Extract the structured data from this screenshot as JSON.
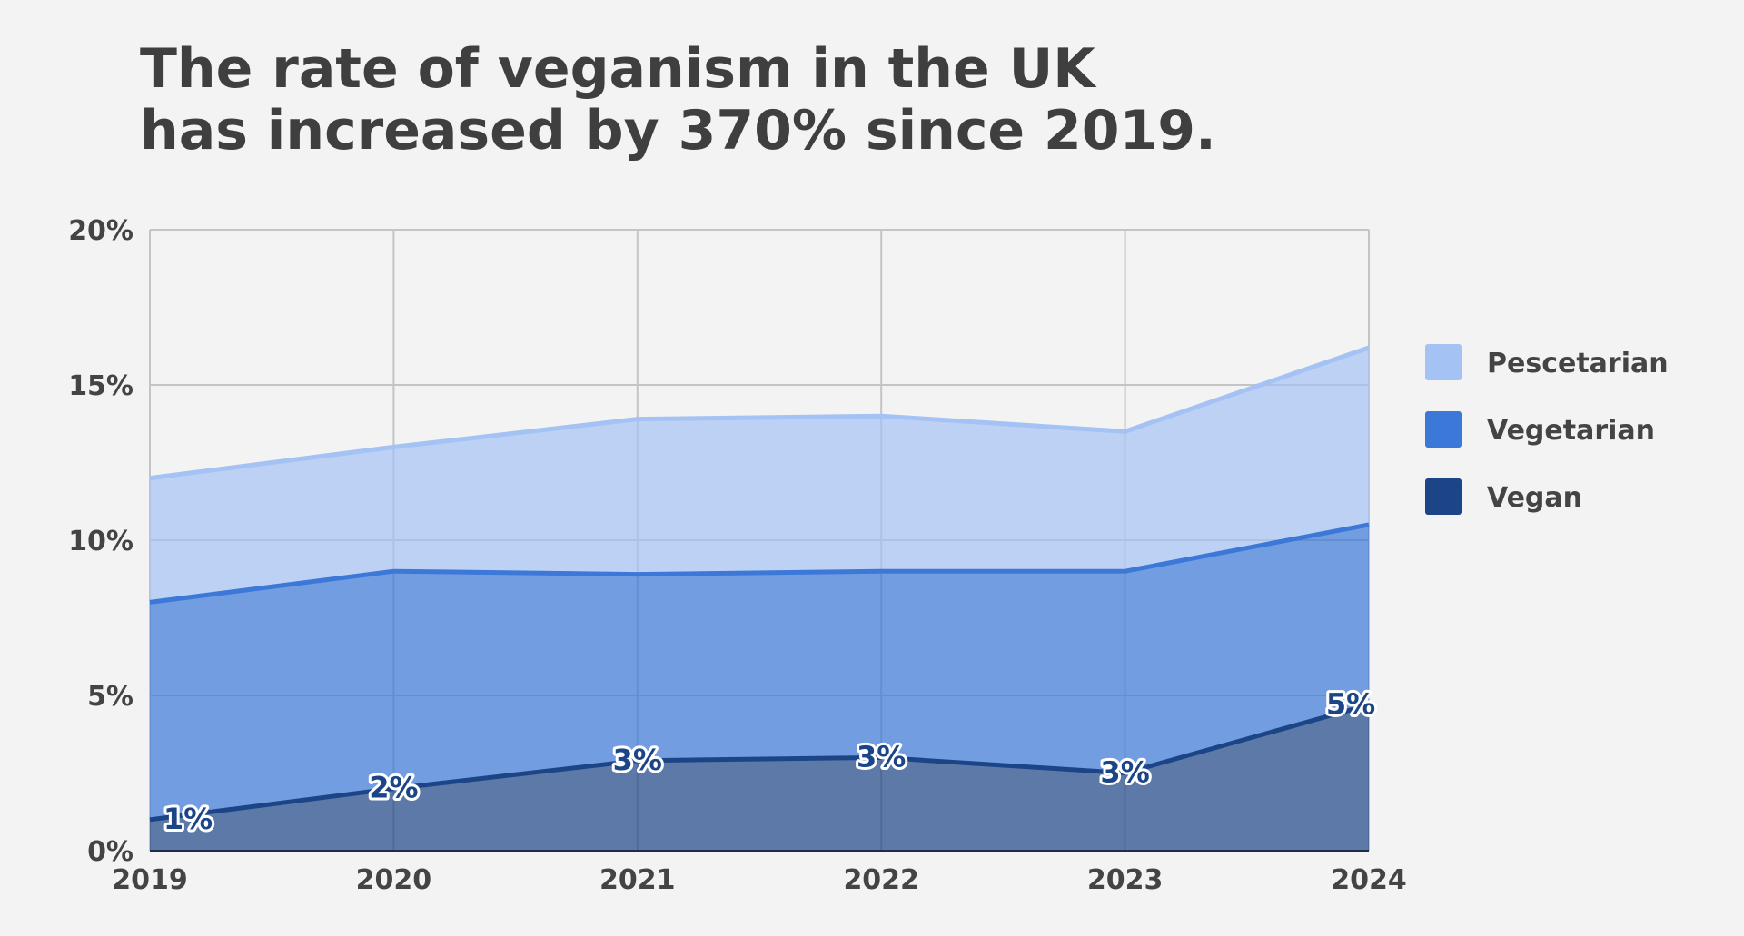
{
  "chart_data": {
    "type": "stacked_area",
    "title": [
      "The rate of veganism in the UK",
      "has increased by 370% since 2019."
    ],
    "x": [
      2019,
      2020,
      2021,
      2022,
      2023,
      2024
    ],
    "xlim": [
      2019,
      2024
    ],
    "xticks": [
      2019,
      2020,
      2021,
      2022,
      2023,
      2024
    ],
    "ylim": [
      0,
      20
    ],
    "yticks": [
      {
        "value": 0,
        "label": "0%"
      },
      {
        "value": 5,
        "label": "5%"
      },
      {
        "value": 10,
        "label": "10%"
      },
      {
        "value": 15,
        "label": "15%"
      },
      {
        "value": 20,
        "label": "20%"
      }
    ],
    "grid": true,
    "legend": "right",
    "series": [
      {
        "name": "Vegan",
        "color": "#1c4587",
        "values": [
          1.0,
          2.0,
          2.9,
          3.0,
          2.5,
          4.7
        ],
        "value_labels": [
          "1%",
          "2%",
          "3%",
          "3%",
          "3%",
          "5%"
        ]
      },
      {
        "name": "Vegetarian",
        "color": "#3c78d8",
        "values": [
          7.0,
          7.0,
          6.0,
          6.0,
          6.5,
          5.8
        ]
      },
      {
        "name": "Pescetarian",
        "color": "#a4c2f4",
        "values": [
          4.0,
          4.0,
          5.0,
          5.0,
          4.5,
          5.7
        ]
      }
    ]
  }
}
